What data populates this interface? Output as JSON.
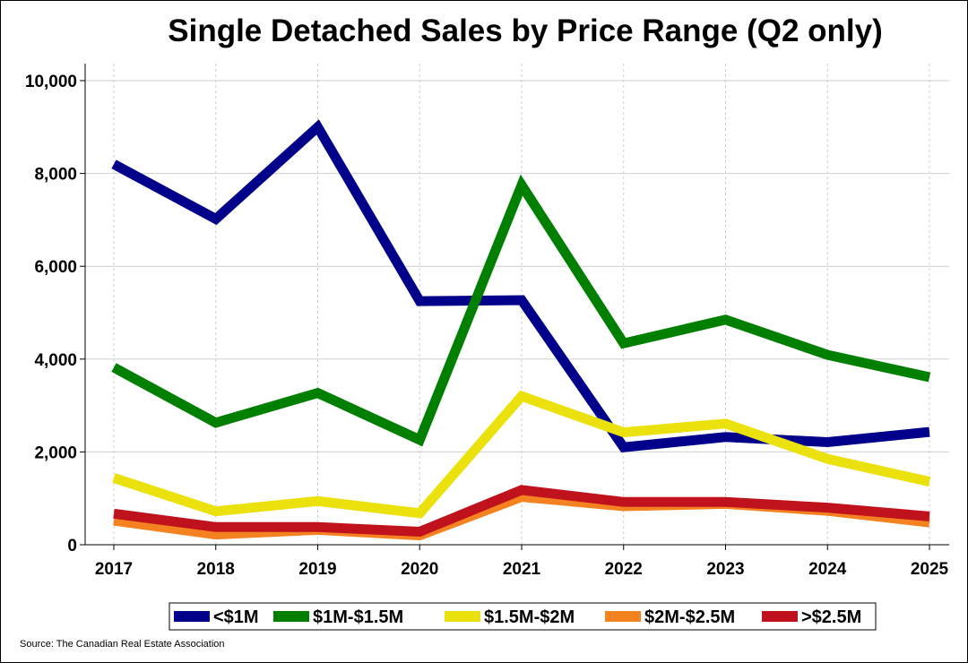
{
  "chart_data": {
    "type": "line",
    "title": "Single Detached Sales by Price Range (Q2 only)",
    "source": "Source: The Canadian Real Estate Association",
    "xlabel": "",
    "ylabel": "",
    "x": [
      "2017",
      "2018",
      "2019",
      "2020",
      "2021",
      "2022",
      "2023",
      "2024",
      "2025"
    ],
    "y_ticks": [
      "0",
      "2,000",
      "4,000",
      "6,000",
      "8,000",
      "10,000"
    ],
    "ylim": [
      0,
      10000
    ],
    "grid": "horizontal major gridlines, dashed vertical gridlines at each year",
    "legend_position": "bottom",
    "series": [
      {
        "name": "<$1M",
        "color": "#00008B",
        "values": [
          8200,
          7020,
          9000,
          5250,
          5270,
          2100,
          2320,
          2210,
          2430
        ]
      },
      {
        "name": "$1M-$1.5M",
        "color": "#007F00",
        "values": [
          3820,
          2630,
          3270,
          2260,
          7750,
          4340,
          4850,
          4090,
          3610
        ]
      },
      {
        "name": "$1.5M-$2M",
        "color": "#EBE10C",
        "values": [
          1440,
          720,
          940,
          680,
          3200,
          2420,
          2610,
          1850,
          1360
        ]
      },
      {
        "name": "$2M-$2.5M",
        "color": "#F58220",
        "values": [
          520,
          220,
          320,
          200,
          1030,
          830,
          880,
          730,
          480
        ]
      },
      {
        "name": ">$2.5M",
        "color": "#C0121C",
        "values": [
          670,
          380,
          380,
          280,
          1180,
          920,
          920,
          800,
          610
        ]
      }
    ]
  }
}
